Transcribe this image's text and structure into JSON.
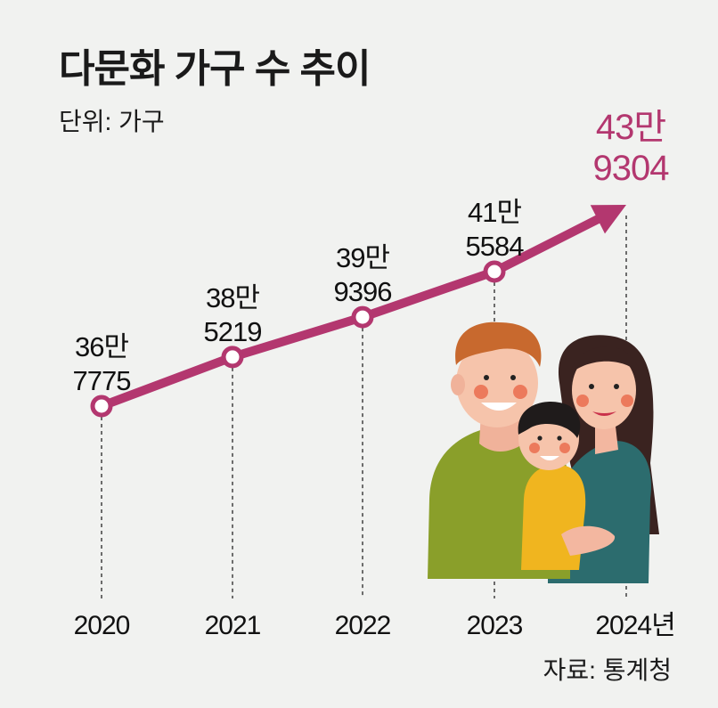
{
  "title": "다문화 가구 수 추이",
  "unit_label": "단위: 가구",
  "source": "자료: 통계청",
  "colors": {
    "line": "#b3376f",
    "highlight": "#b3376f",
    "background": "#f1f2f0"
  },
  "chart_data": {
    "type": "line",
    "x": [
      "2020",
      "2021",
      "2022",
      "2023",
      "2024년"
    ],
    "values": [
      367775,
      385219,
      399396,
      415584,
      439304
    ],
    "value_labels": [
      [
        "36만",
        "7775"
      ],
      [
        "38만",
        "5219"
      ],
      [
        "39만",
        "9396"
      ],
      [
        "41만",
        "5584"
      ],
      [
        "43만",
        "9304"
      ]
    ],
    "highlight_last": true,
    "grid": false
  },
  "illustration": {
    "name": "family-illustration"
  }
}
